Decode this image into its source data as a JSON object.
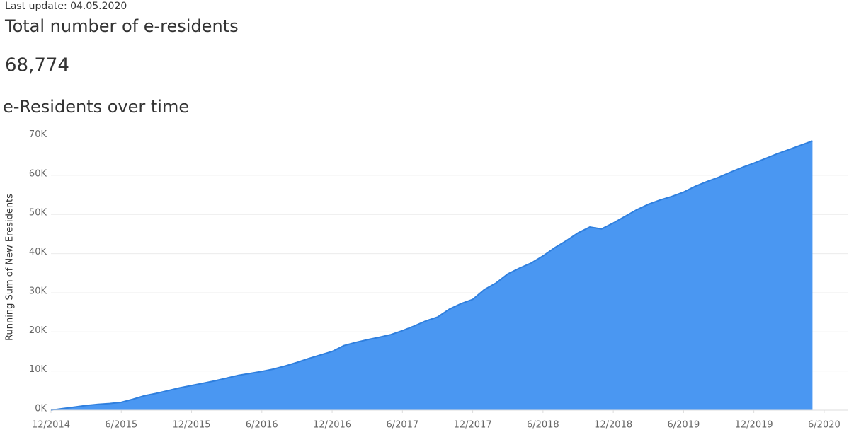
{
  "header": {
    "last_update": "Last update: 04.05.2020",
    "total_title": "Total number of e-residents",
    "total_value": "68,774"
  },
  "chart_data": {
    "type": "area",
    "title": "e-Residents over time",
    "y_label": "Running Sum of New Eresidents",
    "x": [
      "2014-12",
      "2015-01",
      "2015-02",
      "2015-03",
      "2015-04",
      "2015-05",
      "2015-06",
      "2015-07",
      "2015-08",
      "2015-09",
      "2015-10",
      "2015-11",
      "2015-12",
      "2016-01",
      "2016-02",
      "2016-03",
      "2016-04",
      "2016-05",
      "2016-06",
      "2016-07",
      "2016-08",
      "2016-09",
      "2016-10",
      "2016-11",
      "2016-12",
      "2017-01",
      "2017-02",
      "2017-03",
      "2017-04",
      "2017-05",
      "2017-06",
      "2017-07",
      "2017-08",
      "2017-09",
      "2017-10",
      "2017-11",
      "2017-12",
      "2018-01",
      "2018-02",
      "2018-03",
      "2018-04",
      "2018-05",
      "2018-06",
      "2018-07",
      "2018-08",
      "2018-09",
      "2018-10",
      "2018-11",
      "2018-12",
      "2019-01",
      "2019-02",
      "2019-03",
      "2019-04",
      "2019-05",
      "2019-06",
      "2019-07",
      "2019-08",
      "2019-09",
      "2019-10",
      "2019-11",
      "2019-12",
      "2020-01",
      "2020-02",
      "2020-03",
      "2020-04",
      "2020-05"
    ],
    "values": [
      0,
      400,
      800,
      1200,
      1500,
      1700,
      2000,
      2800,
      3700,
      4300,
      5000,
      5700,
      6300,
      6900,
      7500,
      8200,
      8900,
      9400,
      9900,
      10500,
      11300,
      12200,
      13200,
      14100,
      15000,
      16500,
      17300,
      18000,
      18600,
      19300,
      20300,
      21500,
      22800,
      23800,
      25800,
      27200,
      28300,
      30800,
      32500,
      34800,
      36300,
      37600,
      39400,
      41500,
      43300,
      45300,
      46800,
      46300,
      47800,
      49500,
      51200,
      52600,
      53700,
      54600,
      55700,
      57200,
      58400,
      59500,
      60800,
      62000,
      63100,
      64300,
      65500,
      66600,
      67700,
      68774
    ],
    "color": "#4a97f2",
    "line_color": "#2f7fde",
    "xlim": [
      "2014-12",
      "2020-08"
    ],
    "xticks": [
      {
        "value": "2014-12",
        "label": "12/2014"
      },
      {
        "value": "2015-06",
        "label": "6/2015"
      },
      {
        "value": "2015-12",
        "label": "12/2015"
      },
      {
        "value": "2016-06",
        "label": "6/2016"
      },
      {
        "value": "2016-12",
        "label": "12/2016"
      },
      {
        "value": "2017-06",
        "label": "6/2017"
      },
      {
        "value": "2017-12",
        "label": "12/2017"
      },
      {
        "value": "2018-06",
        "label": "6/2018"
      },
      {
        "value": "2018-12",
        "label": "12/2018"
      },
      {
        "value": "2019-06",
        "label": "6/2019"
      },
      {
        "value": "2019-12",
        "label": "12/2019"
      },
      {
        "value": "2020-06",
        "label": "6/2020"
      }
    ],
    "ylim": [
      0,
      71000
    ],
    "yticks": [
      {
        "value": 0,
        "label": "0K"
      },
      {
        "value": 10000,
        "label": "10K"
      },
      {
        "value": 20000,
        "label": "20K"
      },
      {
        "value": 30000,
        "label": "30K"
      },
      {
        "value": 40000,
        "label": "40K"
      },
      {
        "value": 50000,
        "label": "50K"
      },
      {
        "value": 60000,
        "label": "60K"
      },
      {
        "value": 70000,
        "label": "70K"
      }
    ],
    "grid": true
  }
}
